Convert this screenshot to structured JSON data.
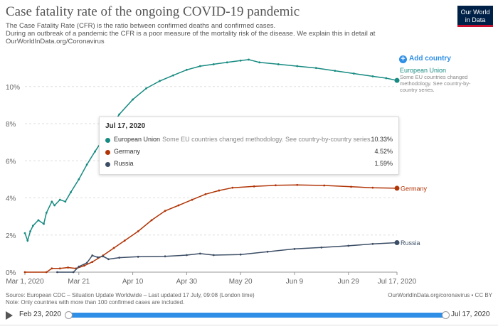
{
  "header": {
    "title": "Case fatality rate of the ongoing COVID-19 pandemic",
    "subtitle_1": "The Case Fatality Rate (CFR) is the ratio between confirmed deaths and confirmed cases.",
    "subtitle_2": "During an outbreak of a pandemic the CFR is a poor measure of the mortality risk of the disease. We explain this in detail at",
    "subtitle_3": "OurWorldInData.org/Coronavirus",
    "logo": "Our World in Data"
  },
  "controls": {
    "add_country": "Add country",
    "add_icon": "plus-circle-icon",
    "play_icon": "play-icon"
  },
  "tooltip": {
    "date": "Jul 17, 2020",
    "rows": [
      {
        "name": "European Union",
        "note": "Some EU countries changed methodology. See country-by-country series.",
        "value": "10.33%",
        "color": "#178b82"
      },
      {
        "name": "Germany",
        "note": "",
        "value": "4.52%",
        "color": "#b13507"
      },
      {
        "name": "Russia",
        "note": "",
        "value": "1.59%",
        "color": "#3c4e66"
      }
    ]
  },
  "footer": {
    "source": "Source: European CDC – Situation Update Worldwide – Last updated 17 July, 09:08 (London time)",
    "note": "Note: Only countries with more than 100 confirmed cases are included.",
    "license": "OurWorldInData.org/coronavirus • CC BY"
  },
  "timeline": {
    "start": "Feb 23, 2020",
    "end": "Jul 17, 2020"
  },
  "chart_data": {
    "type": "line",
    "title": "Case fatality rate of the ongoing COVID-19 pandemic",
    "x_ticks": [
      "Mar 1, 2020",
      "Mar 21",
      "Apr 10",
      "Apr 30",
      "May 20",
      "Jun 9",
      "Jun 29",
      "Jul 17, 2020"
    ],
    "y_ticks": [
      "0%",
      "2%",
      "4%",
      "6%",
      "8%",
      "10%"
    ],
    "ylim": [
      0,
      11.6
    ],
    "xlim": [
      "2020-03-01",
      "2020-07-17"
    ],
    "grid": "horizontal dashed",
    "series": [
      {
        "name": "European Union",
        "label_note": "Some EU countries changed methodology. See country-by-country series.",
        "color": "#178b82",
        "points": [
          [
            "2020-03-01",
            2.1
          ],
          [
            "2020-03-02",
            1.7
          ],
          [
            "2020-03-03",
            2.2
          ],
          [
            "2020-03-04",
            2.5
          ],
          [
            "2020-03-06",
            2.8
          ],
          [
            "2020-03-08",
            2.6
          ],
          [
            "2020-03-09",
            3.2
          ],
          [
            "2020-03-11",
            3.8
          ],
          [
            "2020-03-12",
            3.6
          ],
          [
            "2020-03-14",
            3.9
          ],
          [
            "2020-03-16",
            3.8
          ],
          [
            "2020-03-18",
            4.3
          ],
          [
            "2020-03-21",
            5.0
          ],
          [
            "2020-03-24",
            5.8
          ],
          [
            "2020-03-27",
            6.5
          ],
          [
            "2020-04-01",
            7.6
          ],
          [
            "2020-04-05",
            8.5
          ],
          [
            "2020-04-10",
            9.3
          ],
          [
            "2020-04-15",
            9.9
          ],
          [
            "2020-04-20",
            10.3
          ],
          [
            "2020-04-25",
            10.6
          ],
          [
            "2020-04-30",
            10.9
          ],
          [
            "2020-05-05",
            11.1
          ],
          [
            "2020-05-10",
            11.2
          ],
          [
            "2020-05-15",
            11.3
          ],
          [
            "2020-05-20",
            11.4
          ],
          [
            "2020-05-23",
            11.45
          ],
          [
            "2020-05-27",
            11.3
          ],
          [
            "2020-06-03",
            11.2
          ],
          [
            "2020-06-10",
            11.1
          ],
          [
            "2020-06-17",
            11.0
          ],
          [
            "2020-06-24",
            10.85
          ],
          [
            "2020-07-01",
            10.7
          ],
          [
            "2020-07-08",
            10.55
          ],
          [
            "2020-07-13",
            10.45
          ],
          [
            "2020-07-17",
            10.33
          ]
        ]
      },
      {
        "name": "Germany",
        "color": "#b13507",
        "points": [
          [
            "2020-03-01",
            0
          ],
          [
            "2020-03-09",
            0
          ],
          [
            "2020-03-11",
            0.2
          ],
          [
            "2020-03-14",
            0.2
          ],
          [
            "2020-03-17",
            0.25
          ],
          [
            "2020-03-20",
            0.2
          ],
          [
            "2020-03-23",
            0.35
          ],
          [
            "2020-03-26",
            0.55
          ],
          [
            "2020-03-30",
            0.9
          ],
          [
            "2020-04-03",
            1.3
          ],
          [
            "2020-04-07",
            1.7
          ],
          [
            "2020-04-12",
            2.2
          ],
          [
            "2020-04-17",
            2.8
          ],
          [
            "2020-04-22",
            3.3
          ],
          [
            "2020-04-27",
            3.6
          ],
          [
            "2020-05-02",
            3.9
          ],
          [
            "2020-05-07",
            4.2
          ],
          [
            "2020-05-12",
            4.4
          ],
          [
            "2020-05-17",
            4.55
          ],
          [
            "2020-05-25",
            4.62
          ],
          [
            "2020-06-02",
            4.68
          ],
          [
            "2020-06-10",
            4.7
          ],
          [
            "2020-06-20",
            4.67
          ],
          [
            "2020-06-30",
            4.6
          ],
          [
            "2020-07-08",
            4.55
          ],
          [
            "2020-07-17",
            4.52
          ]
        ]
      },
      {
        "name": "Russia",
        "color": "#3c4e66",
        "points": [
          [
            "2020-03-13",
            0
          ],
          [
            "2020-03-19",
            0
          ],
          [
            "2020-03-21",
            0.3
          ],
          [
            "2020-03-24",
            0.5
          ],
          [
            "2020-03-26",
            0.9
          ],
          [
            "2020-03-28",
            0.8
          ],
          [
            "2020-03-30",
            0.85
          ],
          [
            "2020-04-01",
            0.7
          ],
          [
            "2020-04-05",
            0.78
          ],
          [
            "2020-04-12",
            0.83
          ],
          [
            "2020-04-22",
            0.85
          ],
          [
            "2020-04-30",
            0.92
          ],
          [
            "2020-05-05",
            1.0
          ],
          [
            "2020-05-10",
            0.92
          ],
          [
            "2020-05-20",
            0.95
          ],
          [
            "2020-05-30",
            1.1
          ],
          [
            "2020-06-09",
            1.25
          ],
          [
            "2020-06-19",
            1.33
          ],
          [
            "2020-06-29",
            1.42
          ],
          [
            "2020-07-08",
            1.52
          ],
          [
            "2020-07-17",
            1.59
          ]
        ]
      }
    ]
  }
}
